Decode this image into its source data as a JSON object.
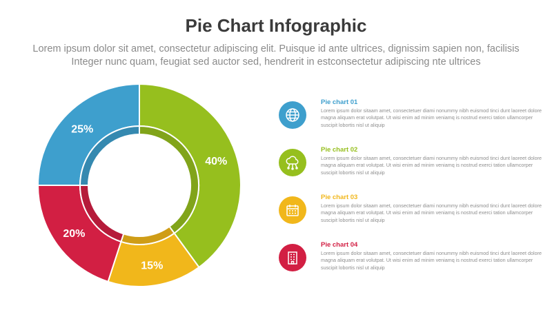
{
  "header": {
    "title": "Pie Chart Infographic",
    "subtitle_line1": "Lorem ipsum dolor sit amet, consectetur adipiscing elit. Puisque id ante ultrices, dignissim sapien non, facilisis",
    "subtitle_line2": "Integer nunc quam, feugiat sed auctor sed, hendrerit in estconsectetur adipiscing nte ultrices"
  },
  "colors": {
    "green": "#96bf1e",
    "yellow": "#f1b71b",
    "red": "#d21f43",
    "blue": "#3e9fcd"
  },
  "chart_data": {
    "type": "pie",
    "donut": true,
    "slices": [
      {
        "label": "40%",
        "value": 40,
        "color": "#96bf1e"
      },
      {
        "label": "15%",
        "value": 15,
        "color": "#f1b71b"
      },
      {
        "label": "20%",
        "value": 20,
        "color": "#d21f43"
      },
      {
        "label": "25%",
        "value": 25,
        "color": "#3e9fcd"
      }
    ],
    "start": "top",
    "direction": "clockwise"
  },
  "items": [
    {
      "title": "Pie chart 01",
      "color": "#3e9fcd",
      "icon": "globe-icon",
      "text": "Lorem ipsum dolor sitaam amet, consectetuer diami nonummy  nibh euismod tinci dunt laoreet dolore magna aliquam erat volutpat. Ut wisi enim ad minim veniamq is nostrud exerci tation ullamcorper suscipit lobortis nisl ut aliquip"
    },
    {
      "title": "Pie chart 02",
      "color": "#96bf1e",
      "icon": "cloud-network-icon",
      "text": "Lorem ipsum dolor sitaam amet, consectetuer diami nonummy  nibh euismod tinci dunt laoreet dolore magna aliquam erat volutpat. Ut wisi enim ad minim veniamq is nostrud exerci tation ullamcorper suscipit lobortis nisl ut aliquip"
    },
    {
      "title": "Pie chart 03",
      "color": "#f1b71b",
      "icon": "calendar-icon",
      "text": "Lorem ipsum dolor sitaam amet, consectetuer diami nonummy  nibh euismod tinci dunt laoreet dolore magna aliquam erat volutpat. Ut wisi enim ad minim veniamq is nostrud exerci tation ullamcorper suscipit lobortis nisl ut aliquip"
    },
    {
      "title": "Pie chart 04",
      "color": "#d21f43",
      "icon": "building-icon",
      "text": "Lorem ipsum dolor sitaam amet, consectetuer diami nonummy  nibh euismod tinci dunt laoreet dolore magna aliquam erat volutpat. Ut wisi enim ad minim veniamq is nostrud exerci tation ullamcorper suscipit lobortis nisl ut aliquip"
    }
  ]
}
